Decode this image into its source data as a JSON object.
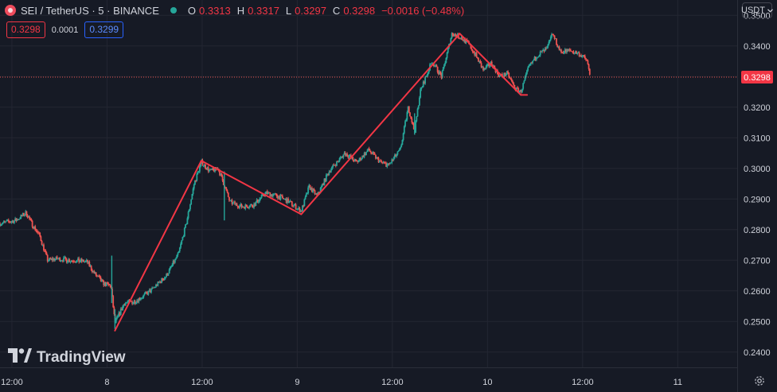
{
  "header": {
    "symbol": "SEI / TetherUS · 5 · BINANCE",
    "open_label": "O",
    "open": "0.3313",
    "high_label": "H",
    "high": "0.3317",
    "low_label": "L",
    "low": "0.3297",
    "close_label": "C",
    "close": "0.3298",
    "change": "−0.0016 (−0.48%)"
  },
  "trade": {
    "sell": "0.3298",
    "spread": "0.0001",
    "buy": "0.3299"
  },
  "currency_button": "USDT",
  "logo_text": "TradingView",
  "colors": {
    "background": "#161a25",
    "up": "#26a69a",
    "down": "#ef5350",
    "drawing": "#f23645",
    "grid": "#232632",
    "text": "#d1d4dc"
  },
  "icons": {
    "coin": "sei-coin-icon",
    "status": "market-open-dot-icon",
    "dropdown": "chevron-down-icon",
    "settings": "gear-icon"
  },
  "chart_data": {
    "type": "candlestick",
    "ylim": [
      0.235,
      0.355
    ],
    "y_ticks": [
      "0.2400",
      "0.2500",
      "0.2600",
      "0.2700",
      "0.2800",
      "0.2900",
      "0.3000",
      "0.3100",
      "0.3200",
      "0.3300",
      "0.3400",
      "0.3500"
    ],
    "y_tick_values": [
      0.24,
      0.25,
      0.26,
      0.27,
      0.28,
      0.29,
      0.3,
      0.31,
      0.32,
      0.33,
      0.34,
      0.35
    ],
    "x_ticks": [
      {
        "label": "12:00",
        "t": 0
      },
      {
        "label": "8",
        "t": 12
      },
      {
        "label": "12:00",
        "t": 24
      },
      {
        "label": "9",
        "t": 36
      },
      {
        "label": "12:00",
        "t": 48
      },
      {
        "label": "10",
        "t": 60
      },
      {
        "label": "12:00",
        "t": 72
      },
      {
        "label": "11",
        "t": 84
      }
    ],
    "x_range_hours": [
      -1.5,
      91.5
    ],
    "last_price": 0.3298,
    "last_price_label": "0.3298",
    "path": [
      {
        "t": -1.5,
        "p": 0.282
      },
      {
        "t": 0.5,
        "p": 0.283
      },
      {
        "t": 1.8,
        "p": 0.2855
      },
      {
        "t": 2.5,
        "p": 0.282
      },
      {
        "t": 3.5,
        "p": 0.278
      },
      {
        "t": 4.5,
        "p": 0.27
      },
      {
        "t": 5.5,
        "p": 0.2705
      },
      {
        "t": 7.5,
        "p": 0.27
      },
      {
        "t": 9.5,
        "p": 0.2695
      },
      {
        "t": 10.3,
        "p": 0.266
      },
      {
        "t": 11.5,
        "p": 0.2625
      },
      {
        "t": 12.5,
        "p": 0.2615
      },
      {
        "t": 13.0,
        "p": 0.2495
      },
      {
        "t": 14.2,
        "p": 0.256
      },
      {
        "t": 15.5,
        "p": 0.2565
      },
      {
        "t": 17.5,
        "p": 0.26
      },
      {
        "t": 19.5,
        "p": 0.265
      },
      {
        "t": 21.0,
        "p": 0.272
      },
      {
        "t": 22.0,
        "p": 0.282
      },
      {
        "t": 23.0,
        "p": 0.295
      },
      {
        "t": 23.9,
        "p": 0.302
      },
      {
        "t": 25.0,
        "p": 0.299
      },
      {
        "t": 26.0,
        "p": 0.3
      },
      {
        "t": 26.8,
        "p": 0.2945
      },
      {
        "t": 27.5,
        "p": 0.289
      },
      {
        "t": 29.0,
        "p": 0.2875
      },
      {
        "t": 30.5,
        "p": 0.288
      },
      {
        "t": 32.0,
        "p": 0.292
      },
      {
        "t": 33.5,
        "p": 0.291
      },
      {
        "t": 35.0,
        "p": 0.289
      },
      {
        "t": 36.5,
        "p": 0.286
      },
      {
        "t": 37.5,
        "p": 0.294
      },
      {
        "t": 38.5,
        "p": 0.291
      },
      {
        "t": 40.0,
        "p": 0.299
      },
      {
        "t": 42.0,
        "p": 0.305
      },
      {
        "t": 43.5,
        "p": 0.302
      },
      {
        "t": 45.0,
        "p": 0.306
      },
      {
        "t": 46.5,
        "p": 0.302
      },
      {
        "t": 47.5,
        "p": 0.301
      },
      {
        "t": 49.0,
        "p": 0.306
      },
      {
        "t": 50.0,
        "p": 0.32
      },
      {
        "t": 50.8,
        "p": 0.312
      },
      {
        "t": 51.5,
        "p": 0.325
      },
      {
        "t": 53.0,
        "p": 0.335
      },
      {
        "t": 54.2,
        "p": 0.33
      },
      {
        "t": 55.5,
        "p": 0.344
      },
      {
        "t": 56.5,
        "p": 0.343
      },
      {
        "t": 57.5,
        "p": 0.341
      },
      {
        "t": 58.5,
        "p": 0.337
      },
      {
        "t": 59.5,
        "p": 0.332
      },
      {
        "t": 60.5,
        "p": 0.3345
      },
      {
        "t": 61.5,
        "p": 0.33
      },
      {
        "t": 62.5,
        "p": 0.331
      },
      {
        "t": 63.5,
        "p": 0.326
      },
      {
        "t": 64.2,
        "p": 0.325
      },
      {
        "t": 65.2,
        "p": 0.333
      },
      {
        "t": 66.3,
        "p": 0.337
      },
      {
        "t": 67.5,
        "p": 0.339
      },
      {
        "t": 68.2,
        "p": 0.344
      },
      {
        "t": 69.2,
        "p": 0.338
      },
      {
        "t": 70.3,
        "p": 0.3385
      },
      {
        "t": 71.5,
        "p": 0.3375
      },
      {
        "t": 72.5,
        "p": 0.3355
      },
      {
        "t": 73.0,
        "p": 0.3298
      }
    ],
    "wicks": [
      {
        "t": 12.6,
        "high": 0.2715,
        "low": 0.256
      },
      {
        "t": 13.0,
        "high": 0.254,
        "low": 0.2475
      },
      {
        "t": 26.8,
        "high": 0.299,
        "low": 0.283
      },
      {
        "t": 50.8,
        "high": 0.318,
        "low": 0.311
      }
    ],
    "drawing_segments": [
      {
        "t1": 13.0,
        "p1": 0.247,
        "t2": 23.9,
        "p2": 0.3025
      },
      {
        "t1": 23.9,
        "p1": 0.3025,
        "t2": 36.5,
        "p2": 0.285
      },
      {
        "t1": 36.5,
        "p1": 0.285,
        "t2": 56.5,
        "p2": 0.344
      },
      {
        "t1": 56.5,
        "p1": 0.344,
        "t2": 64.2,
        "p2": 0.324
      },
      {
        "t1": 64.2,
        "p1": 0.324,
        "t2": 65.0,
        "p2": 0.324
      }
    ]
  }
}
